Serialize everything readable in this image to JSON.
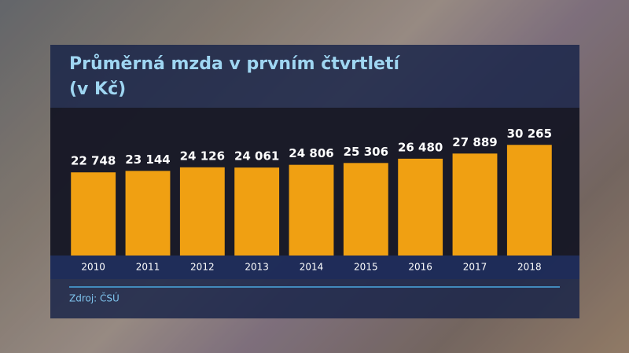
{
  "chart_data": {
    "type": "bar",
    "title": "Průměrná mzda v prvním čtvrtletí (v Kč)",
    "categories": [
      "2010",
      "2011",
      "2012",
      "2013",
      "2014",
      "2015",
      "2016",
      "2017",
      "2018"
    ],
    "values": [
      22748,
      23144,
      24126,
      24061,
      24806,
      25306,
      26480,
      27889,
      30265
    ],
    "value_labels": [
      "22 748",
      "23 144",
      "24 126",
      "24 061",
      "24 806",
      "25 306",
      "26 480",
      "27 889",
      "30 265"
    ],
    "color": "#f0a012",
    "ylim": [
      0,
      40000
    ],
    "source": "Zdroj: ČSÚ"
  }
}
